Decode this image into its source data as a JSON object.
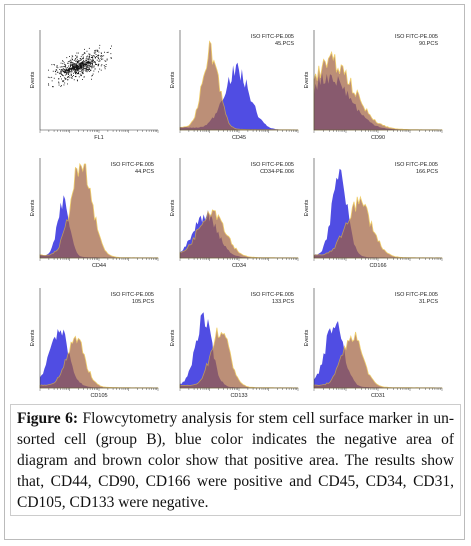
{
  "panels": [
    {
      "x_label": "FL1",
      "y_label": "Events"
    },
    {
      "labels": [
        "ISO FITC-PE.005",
        "45.PCS"
      ],
      "x_label": "CD45",
      "y_label": "Events"
    },
    {
      "labels": [
        "ISO FITC-PE.005",
        "90.PCS"
      ],
      "x_label": "CD90",
      "y_label": "Events"
    },
    {
      "labels": [
        "ISO FITC-PE.005",
        "44.PCS"
      ],
      "x_label": "CD44",
      "y_label": "Events"
    },
    {
      "labels": [
        "ISO FITC-PE.005",
        "CD34-PE.006"
      ],
      "x_label": "CD34",
      "y_label": "Events"
    },
    {
      "labels": [
        "ISO FITC-PE.005",
        "166.PCS"
      ],
      "x_label": "CD166",
      "y_label": "Events"
    },
    {
      "labels": [
        "ISO FITC-PE.005",
        "105.PCS"
      ],
      "x_label": "CD105",
      "y_label": "Events"
    },
    {
      "labels": [
        "ISO FITC-PE.005",
        "133.PCS"
      ],
      "x_label": "CD133",
      "y_label": "Events"
    },
    {
      "labels": [
        "ISO FITC-PE.005",
        "31.PCS"
      ],
      "x_label": "CD31",
      "y_label": "Events"
    }
  ],
  "caption": {
    "label": "Figure 6:",
    "text": "Flowcytometry analysis for stem cell surface marker in un-sorted cell (group B), blue color indicates the negative area of diagram and brown color show that positive area. The results show that, CD44, CD90, CD166 were positive and CD45, CD34, CD31, CD105, CD133 were negative."
  }
}
